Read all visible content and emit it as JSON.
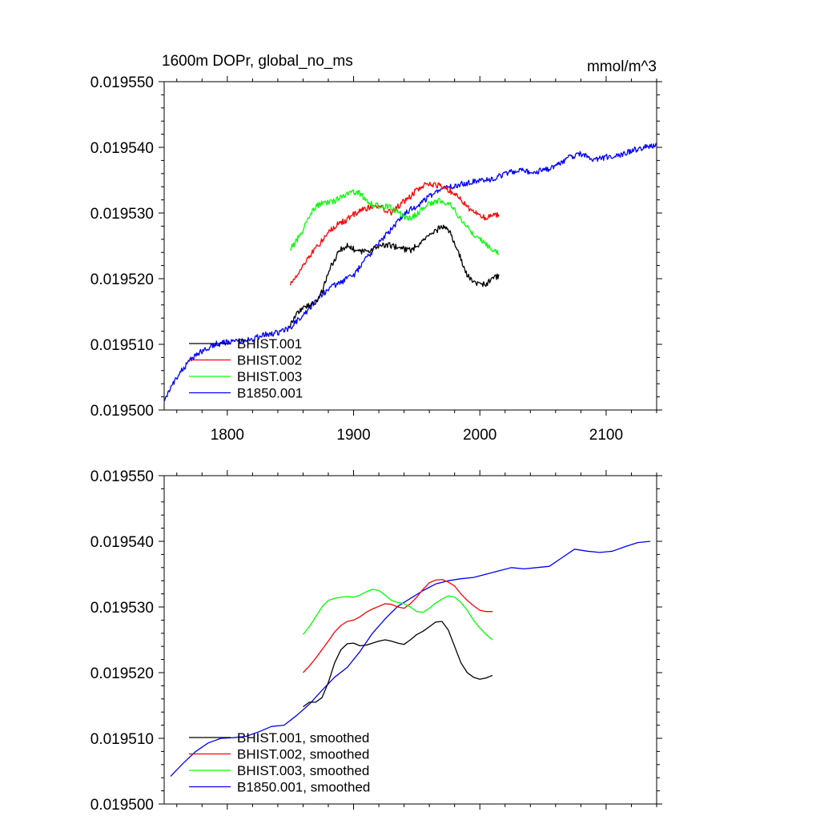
{
  "chart_data": [
    {
      "type": "line",
      "title": "1600m DOPr, global_no_ms",
      "units": "mmol/m^3",
      "xlim": [
        1750,
        2140
      ],
      "ylim": [
        0.0195,
        0.01955
      ],
      "xticks": [
        1800,
        1900,
        2000,
        2100
      ],
      "xtick_labels": [
        "1800",
        "1900",
        "2000",
        "2100"
      ],
      "yticks": [
        0.0195,
        0.01951,
        0.01952,
        0.01953,
        0.01954,
        0.01955
      ],
      "ytick_labels": [
        "0.019500",
        "0.019510",
        "0.019520",
        "0.019530",
        "0.019540",
        "0.019550"
      ],
      "legend_position": "bottom-left",
      "noisy": true,
      "series": [
        {
          "name": "BHIST.001",
          "color": "#000000",
          "x": [
            1850,
            1855,
            1860,
            1865,
            1870,
            1875,
            1880,
            1885,
            1890,
            1895,
            1900,
            1905,
            1910,
            1915,
            1920,
            1925,
            1930,
            1935,
            1940,
            1945,
            1950,
            1955,
            1960,
            1965,
            1970,
            1975,
            1980,
            1985,
            1990,
            1995,
            2000,
            2005,
            2010,
            2015
          ],
          "y": [
            0.019513,
            0.0195148,
            0.0195155,
            0.019516,
            0.0195162,
            0.019518,
            0.019521,
            0.019523,
            0.0195245,
            0.019525,
            0.0195245,
            0.019524,
            0.0195242,
            0.0195245,
            0.0195248,
            0.0195252,
            0.019525,
            0.0195248,
            0.0195245,
            0.0195243,
            0.019525,
            0.0195258,
            0.0195265,
            0.0195272,
            0.019528,
            0.0195275,
            0.0195255,
            0.019523,
            0.0195205,
            0.0195195,
            0.019519,
            0.0195192,
            0.01952,
            0.0195205
          ]
        },
        {
          "name": "BHIST.002",
          "color": "#ff0000",
          "x": [
            1850,
            1855,
            1860,
            1865,
            1870,
            1875,
            1880,
            1885,
            1890,
            1895,
            1900,
            1905,
            1910,
            1915,
            1920,
            1925,
            1930,
            1935,
            1940,
            1945,
            1950,
            1955,
            1960,
            1965,
            1970,
            1975,
            1980,
            1985,
            1990,
            1995,
            2000,
            2005,
            2010,
            2015
          ],
          "y": [
            0.0195193,
            0.0195205,
            0.019522,
            0.0195235,
            0.0195245,
            0.0195258,
            0.019527,
            0.019528,
            0.0195285,
            0.019529,
            0.0195298,
            0.0195303,
            0.0195307,
            0.019531,
            0.019531,
            0.0195305,
            0.01953,
            0.019531,
            0.0195318,
            0.0195325,
            0.0195335,
            0.0195342,
            0.0195345,
            0.0195343,
            0.019534,
            0.0195335,
            0.019533,
            0.019532,
            0.019531,
            0.0195302,
            0.0195295,
            0.0195293,
            0.0195296,
            0.0195299
          ]
        },
        {
          "name": "BHIST.003",
          "color": "#00ff00",
          "x": [
            1850,
            1855,
            1860,
            1865,
            1870,
            1875,
            1880,
            1885,
            1890,
            1895,
            1900,
            1905,
            1910,
            1915,
            1920,
            1925,
            1930,
            1935,
            1940,
            1945,
            1950,
            1955,
            1960,
            1965,
            1970,
            1975,
            1980,
            1985,
            1990,
            1995,
            2000,
            2005,
            2010,
            2015
          ],
          "y": [
            0.0195245,
            0.0195258,
            0.0195275,
            0.0195295,
            0.019531,
            0.0195315,
            0.0195315,
            0.0195318,
            0.0195325,
            0.019533,
            0.0195332,
            0.019533,
            0.019532,
            0.0195313,
            0.019531,
            0.019531,
            0.0195308,
            0.0195302,
            0.0195295,
            0.0195292,
            0.0195298,
            0.0195308,
            0.0195315,
            0.0195318,
            0.0195318,
            0.0195315,
            0.0195305,
            0.019529,
            0.0195278,
            0.0195268,
            0.019526,
            0.0195252,
            0.0195245,
            0.0195241
          ]
        },
        {
          "name": "B1850.001",
          "color": "#0000ff",
          "x": [
            1750,
            1760,
            1770,
            1780,
            1790,
            1800,
            1810,
            1820,
            1830,
            1840,
            1850,
            1860,
            1870,
            1880,
            1890,
            1900,
            1910,
            1920,
            1930,
            1940,
            1950,
            1960,
            1970,
            1980,
            1990,
            2000,
            2010,
            2020,
            2030,
            2040,
            2050,
            2060,
            2070,
            2080,
            2090,
            2100,
            2110,
            2120,
            2130,
            2140
          ],
          "y": [
            0.0195015,
            0.019505,
            0.0195075,
            0.019509,
            0.01951,
            0.0195103,
            0.0195105,
            0.0195108,
            0.0195115,
            0.0195118,
            0.0195125,
            0.0195145,
            0.0195165,
            0.0195185,
            0.0195195,
            0.0195205,
            0.019523,
            0.0195255,
            0.0195275,
            0.01953,
            0.019531,
            0.0195325,
            0.0195335,
            0.0195342,
            0.0195345,
            0.019535,
            0.0195352,
            0.019536,
            0.0195365,
            0.0195362,
            0.0195365,
            0.019537,
            0.0195385,
            0.019539,
            0.0195382,
            0.0195385,
            0.0195388,
            0.0195395,
            0.01954,
            0.0195402
          ]
        }
      ]
    },
    {
      "type": "line",
      "xlim": [
        1750,
        2140
      ],
      "ylim": [
        0.0195,
        0.01955
      ],
      "xticks": [
        1800,
        1900,
        2000,
        2100
      ],
      "yticks": [
        0.0195,
        0.01951,
        0.01952,
        0.01953,
        0.01954,
        0.01955
      ],
      "ytick_labels": [
        "0.019500",
        "0.019510",
        "0.019520",
        "0.019530",
        "0.019540",
        "0.019550"
      ],
      "legend_position": "bottom-left",
      "noisy": false,
      "series": [
        {
          "name": "BHIST.001, smoothed",
          "color": "#000000",
          "x": [
            1860,
            1865,
            1870,
            1875,
            1880,
            1885,
            1890,
            1895,
            1900,
            1905,
            1910,
            1915,
            1920,
            1925,
            1930,
            1935,
            1940,
            1945,
            1950,
            1955,
            1960,
            1965,
            1970,
            1975,
            1980,
            1985,
            1990,
            1995,
            2000,
            2005,
            2010
          ],
          "y": [
            0.0195148,
            0.0195155,
            0.0195155,
            0.0195162,
            0.0195185,
            0.0195215,
            0.0195235,
            0.0195244,
            0.0195245,
            0.0195241,
            0.0195242,
            0.0195245,
            0.0195248,
            0.019525,
            0.0195248,
            0.0195245,
            0.0195243,
            0.019525,
            0.0195258,
            0.0195263,
            0.019527,
            0.0195277,
            0.0195278,
            0.0195265,
            0.019524,
            0.0195215,
            0.01952,
            0.0195193,
            0.019519,
            0.0195192,
            0.0195196
          ]
        },
        {
          "name": "BHIST.002, smoothed",
          "color": "#ff0000",
          "x": [
            1860,
            1865,
            1870,
            1875,
            1880,
            1885,
            1890,
            1895,
            1900,
            1905,
            1910,
            1915,
            1920,
            1925,
            1930,
            1935,
            1940,
            1945,
            1950,
            1955,
            1960,
            1965,
            1970,
            1975,
            1980,
            1985,
            1990,
            1995,
            2000,
            2005,
            2010
          ],
          "y": [
            0.01952,
            0.019521,
            0.0195222,
            0.0195235,
            0.0195248,
            0.0195262,
            0.0195272,
            0.0195278,
            0.019528,
            0.0195285,
            0.0195292,
            0.0195297,
            0.0195301,
            0.0195305,
            0.0195304,
            0.01953,
            0.0195298,
            0.0195305,
            0.0195315,
            0.0195327,
            0.0195337,
            0.0195341,
            0.0195342,
            0.0195338,
            0.0195332,
            0.019532,
            0.019531,
            0.0195302,
            0.0195295,
            0.0195293,
            0.0195293
          ]
        },
        {
          "name": "BHIST.003, smoothed",
          "color": "#00ff00",
          "x": [
            1860,
            1865,
            1870,
            1875,
            1880,
            1885,
            1890,
            1895,
            1900,
            1905,
            1910,
            1915,
            1920,
            1925,
            1930,
            1935,
            1940,
            1945,
            1950,
            1955,
            1960,
            1965,
            1970,
            1975,
            1980,
            1985,
            1990,
            1995,
            2000,
            2005,
            2010
          ],
          "y": [
            0.0195258,
            0.019527,
            0.0195285,
            0.01953,
            0.019531,
            0.0195313,
            0.0195315,
            0.0195316,
            0.0195315,
            0.0195318,
            0.0195323,
            0.0195327,
            0.0195325,
            0.0195318,
            0.019531,
            0.0195307,
            0.0195305,
            0.01953,
            0.0195293,
            0.0195292,
            0.0195298,
            0.0195306,
            0.0195312,
            0.0195317,
            0.0195315,
            0.0195307,
            0.0195295,
            0.019528,
            0.0195268,
            0.0195258,
            0.019525
          ]
        },
        {
          "name": "B1850.001, smoothed",
          "color": "#0000ff",
          "x": [
            1755,
            1765,
            1775,
            1785,
            1795,
            1805,
            1815,
            1825,
            1835,
            1845,
            1855,
            1865,
            1875,
            1885,
            1895,
            1905,
            1915,
            1925,
            1935,
            1945,
            1955,
            1965,
            1975,
            1985,
            1995,
            2005,
            2015,
            2025,
            2035,
            2045,
            2055,
            2065,
            2075,
            2085,
            2095,
            2105,
            2115,
            2125,
            2135
          ],
          "y": [
            0.0195042,
            0.0195062,
            0.019508,
            0.0195093,
            0.01951,
            0.0195101,
            0.0195103,
            0.019511,
            0.0195118,
            0.019512,
            0.0195135,
            0.0195152,
            0.0195173,
            0.0195193,
            0.0195208,
            0.0195232,
            0.019526,
            0.0195282,
            0.0195301,
            0.0195313,
            0.0195325,
            0.0195335,
            0.019534,
            0.0195343,
            0.0195345,
            0.019535,
            0.0195355,
            0.019536,
            0.0195358,
            0.019536,
            0.0195362,
            0.0195375,
            0.0195388,
            0.0195385,
            0.0195383,
            0.0195385,
            0.0195392,
            0.0195398,
            0.01954
          ]
        }
      ]
    }
  ]
}
